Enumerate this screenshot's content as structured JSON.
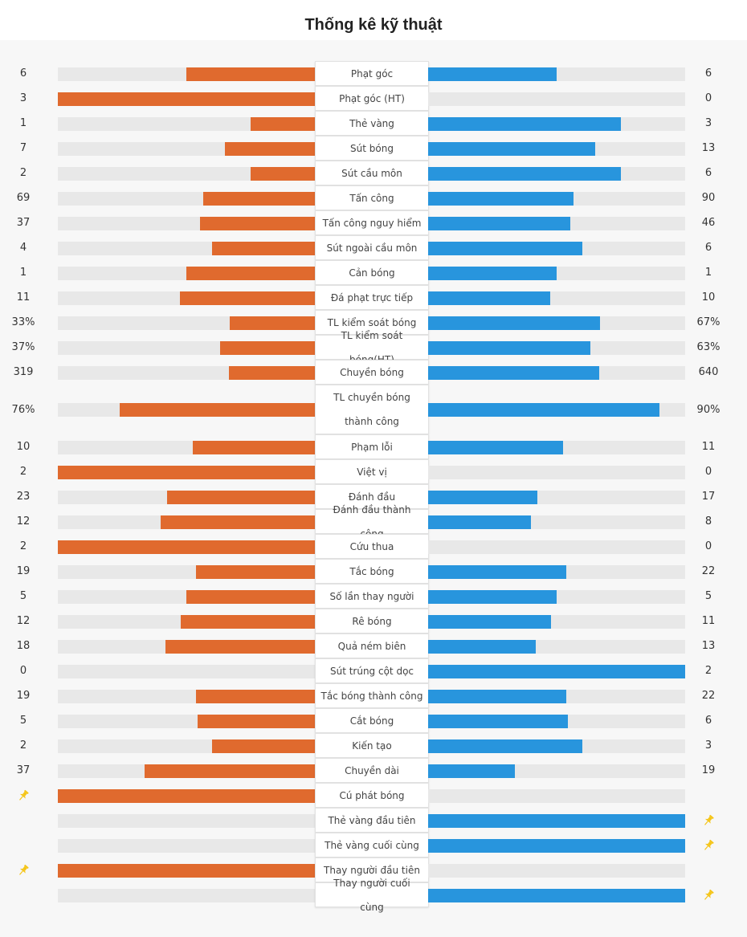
{
  "title": "Thống kê kỹ thuật",
  "colors": {
    "home": "#e06a2e",
    "away": "#2895dd",
    "track": "#e8e8e8",
    "pin": "#f5c518"
  },
  "stats": [
    {
      "label": "Phạt góc",
      "home": "6",
      "away": "6",
      "home_frac": 0.5,
      "away_frac": 0.5
    },
    {
      "label": "Phạt góc (HT)",
      "home": "3",
      "away": "0",
      "home_frac": 1.0,
      "away_frac": 0.0
    },
    {
      "label": "Thẻ vàng",
      "home": "1",
      "away": "3",
      "home_frac": 0.25,
      "away_frac": 0.75
    },
    {
      "label": "Sút bóng",
      "home": "7",
      "away": "13",
      "home_frac": 0.35,
      "away_frac": 0.65
    },
    {
      "label": "Sút cầu môn",
      "home": "2",
      "away": "6",
      "home_frac": 0.25,
      "away_frac": 0.75
    },
    {
      "label": "Tấn công",
      "home": "69",
      "away": "90",
      "home_frac": 0.434,
      "away_frac": 0.566
    },
    {
      "label": "Tấn công nguy hiểm",
      "home": "37",
      "away": "46",
      "home_frac": 0.446,
      "away_frac": 0.554
    },
    {
      "label": "Sút ngoài cầu môn",
      "home": "4",
      "away": "6",
      "home_frac": 0.4,
      "away_frac": 0.6
    },
    {
      "label": "Cản bóng",
      "home": "1",
      "away": "1",
      "home_frac": 0.5,
      "away_frac": 0.5
    },
    {
      "label": "Đá phạt trực tiếp",
      "home": "11",
      "away": "10",
      "home_frac": 0.524,
      "away_frac": 0.476
    },
    {
      "label": "TL kiểm soát bóng",
      "home": "33%",
      "away": "67%",
      "home_frac": 0.33,
      "away_frac": 0.67
    },
    {
      "label": "TL kiểm soát bóng(HT)",
      "home": "37%",
      "away": "63%",
      "home_frac": 0.37,
      "away_frac": 0.63
    },
    {
      "label": "Chuyền bóng",
      "home": "319",
      "away": "640",
      "home_frac": 0.333,
      "away_frac": 0.667
    },
    {
      "label": "TL chuyền bóng thành công",
      "home": "76%",
      "away": "90%",
      "home_frac": 0.76,
      "away_frac": 0.9,
      "tall": true
    },
    {
      "label": "Phạm lỗi",
      "home": "10",
      "away": "11",
      "home_frac": 0.476,
      "away_frac": 0.524
    },
    {
      "label": "Việt vị",
      "home": "2",
      "away": "0",
      "home_frac": 1.0,
      "away_frac": 0.0
    },
    {
      "label": "Đánh đầu",
      "home": "23",
      "away": "17",
      "home_frac": 0.575,
      "away_frac": 0.425
    },
    {
      "label": "Đánh đầu thành công",
      "home": "12",
      "away": "8",
      "home_frac": 0.6,
      "away_frac": 0.4
    },
    {
      "label": "Cứu thua",
      "home": "2",
      "away": "0",
      "home_frac": 1.0,
      "away_frac": 0.0
    },
    {
      "label": "Tắc bóng",
      "home": "19",
      "away": "22",
      "home_frac": 0.463,
      "away_frac": 0.537
    },
    {
      "label": "Số lần thay người",
      "home": "5",
      "away": "5",
      "home_frac": 0.5,
      "away_frac": 0.5
    },
    {
      "label": "Rê bóng",
      "home": "12",
      "away": "11",
      "home_frac": 0.522,
      "away_frac": 0.478
    },
    {
      "label": "Quả ném biên",
      "home": "18",
      "away": "13",
      "home_frac": 0.581,
      "away_frac": 0.419
    },
    {
      "label": "Sút trúng cột dọc",
      "home": "0",
      "away": "2",
      "home_frac": 0.0,
      "away_frac": 1.0
    },
    {
      "label": "Tắc bóng thành công",
      "home": "19",
      "away": "22",
      "home_frac": 0.463,
      "away_frac": 0.537
    },
    {
      "label": "Cắt bóng",
      "home": "5",
      "away": "6",
      "home_frac": 0.455,
      "away_frac": 0.545
    },
    {
      "label": "Kiến tạo",
      "home": "2",
      "away": "3",
      "home_frac": 0.4,
      "away_frac": 0.6
    },
    {
      "label": "Chuyền dài",
      "home": "37",
      "away": "19",
      "home_frac": 0.661,
      "away_frac": 0.339
    },
    {
      "label": "Cú phát bóng",
      "home_icon": "pin-icon",
      "home_frac": 1.0,
      "away_frac": 0.0
    },
    {
      "label": "Thẻ vàng đầu tiên",
      "away_icon": "pin-icon",
      "home_frac": 0.0,
      "away_frac": 1.0
    },
    {
      "label": "Thẻ vàng cuối cùng",
      "away_icon": "pin-icon",
      "home_frac": 0.0,
      "away_frac": 1.0
    },
    {
      "label": "Thay người đầu tiên",
      "home_icon": "pin-icon",
      "home_frac": 1.0,
      "away_frac": 0.0
    },
    {
      "label": "Thay người cuối cùng",
      "away_icon": "pin-icon",
      "home_frac": 0.0,
      "away_frac": 1.0
    }
  ]
}
